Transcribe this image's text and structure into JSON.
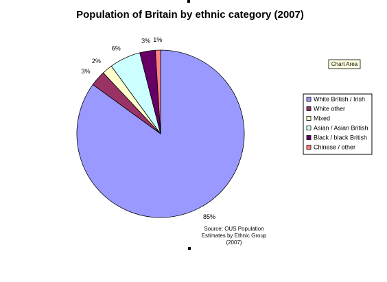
{
  "chart_data": {
    "type": "pie",
    "title": "Population of Britain by ethnic category (2007)",
    "categories": [
      "White British / Irish",
      "White other",
      "Mixed",
      "Asian / Asian British",
      "Black / black British",
      "Chinese / other"
    ],
    "values": [
      85,
      3,
      2,
      6,
      3,
      1
    ],
    "value_labels": [
      "85%",
      "3%",
      "2%",
      "6%",
      "3%",
      "1%"
    ],
    "colors": [
      "#9999ff",
      "#993366",
      "#ffffcc",
      "#ccffff",
      "#660066",
      "#ff8080"
    ],
    "legend": "right",
    "source": [
      "Source: OUS Population",
      "Estimates by Ethnic Group",
      "(2007)"
    ]
  },
  "tooltip": "Chart Area"
}
